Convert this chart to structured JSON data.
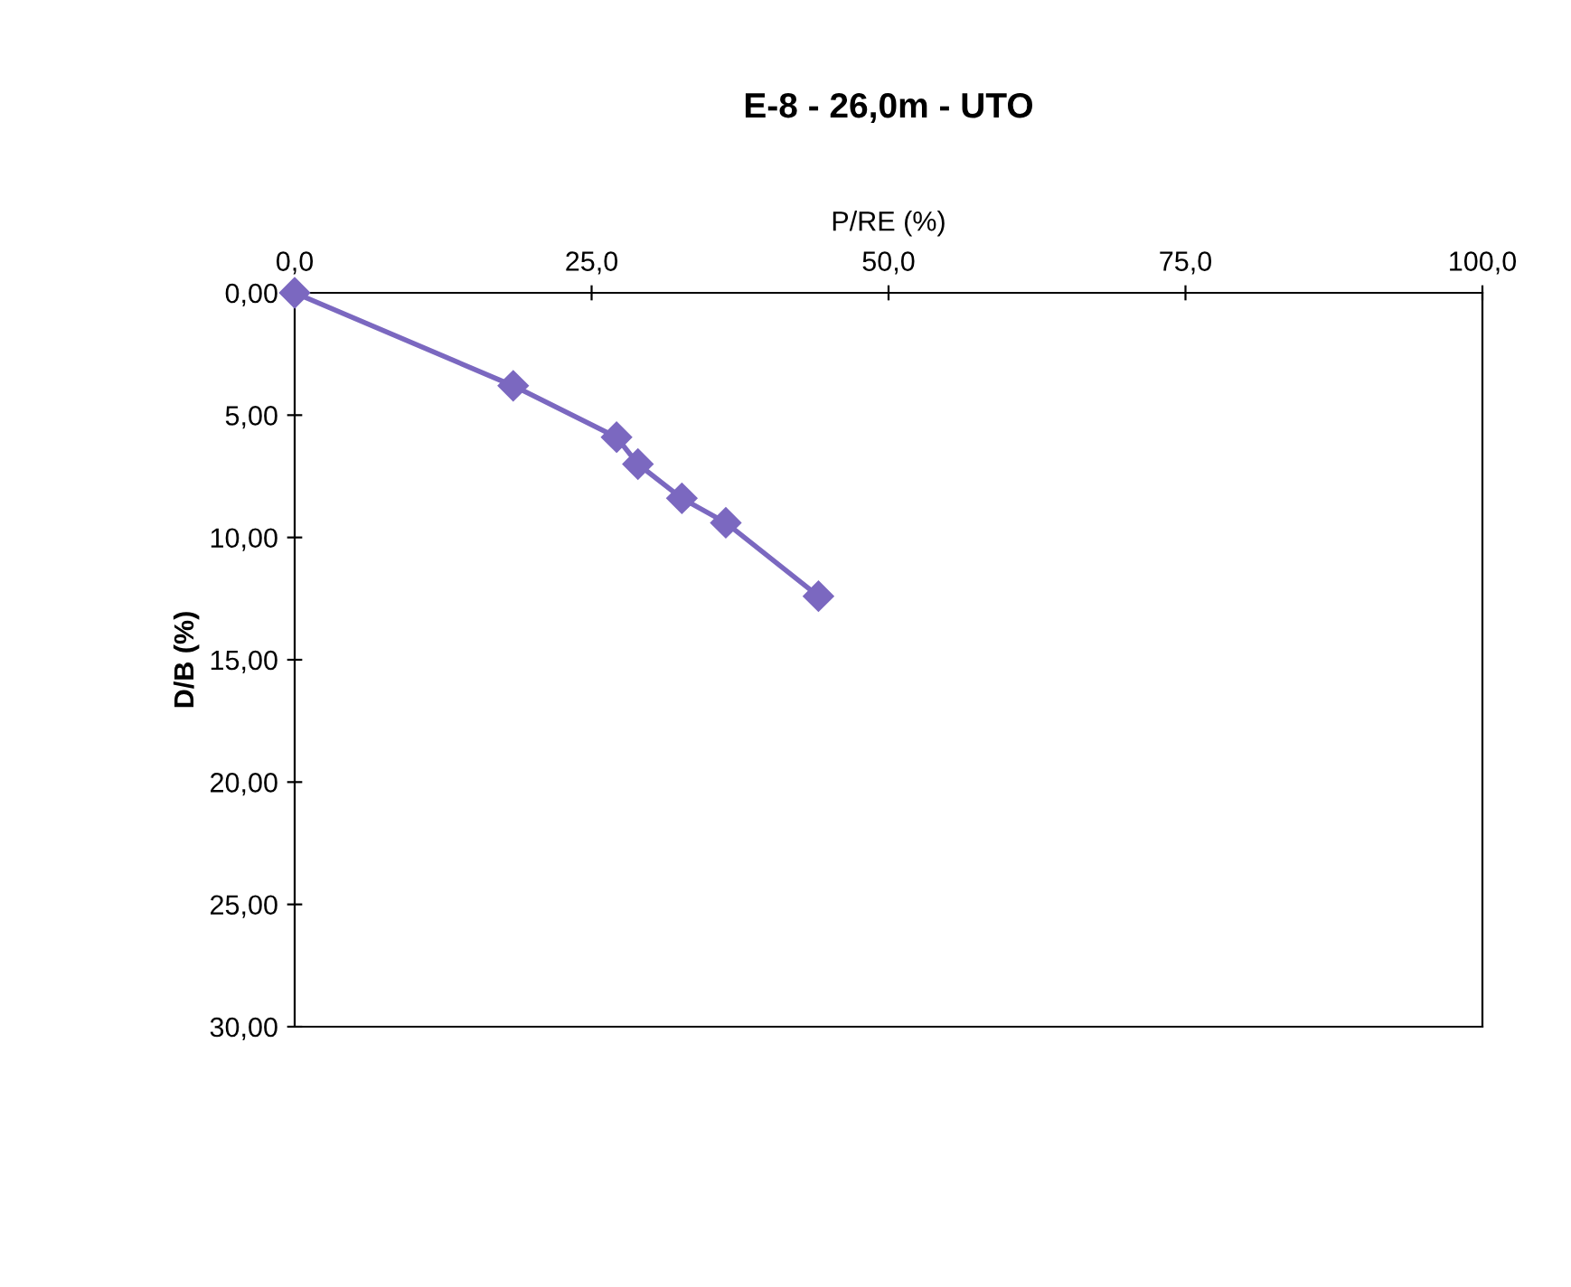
{
  "chart_data": {
    "type": "line",
    "title": "E-8 - 26,0m - UTO",
    "xlabel": "P/RE (%)",
    "ylabel": "D/B (%)",
    "x": [
      0,
      18.4,
      27.1,
      28.9,
      32.6,
      36.3,
      44.1
    ],
    "series": [
      {
        "color": "#7b68c0",
        "values": [
          0,
          3.8,
          5.9,
          7.0,
          8.4,
          9.4,
          12.4
        ]
      }
    ],
    "xlim": [
      0,
      100
    ],
    "xticks": [
      {
        "value": 0,
        "label": "0,0"
      },
      {
        "value": 25,
        "label": "25,0"
      },
      {
        "value": 50,
        "label": "50,0"
      },
      {
        "value": 75,
        "label": "75,0"
      },
      {
        "value": 100,
        "label": "100,0"
      }
    ],
    "ylim": [
      30,
      0
    ],
    "yticks": [
      {
        "value": 0,
        "label": "0,00"
      },
      {
        "value": 5,
        "label": "5,00"
      },
      {
        "value": 10,
        "label": "10,00"
      },
      {
        "value": 15,
        "label": "15,00"
      },
      {
        "value": 20,
        "label": "20,00"
      },
      {
        "value": 25,
        "label": "25,00"
      },
      {
        "value": 30,
        "label": "30,00"
      }
    ],
    "marker": "diamond",
    "line_style": "solid",
    "grid": false,
    "legend": false
  }
}
